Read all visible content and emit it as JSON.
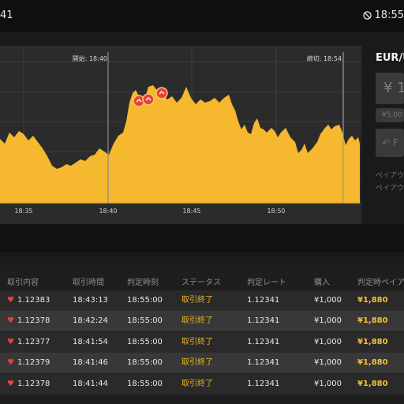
{
  "status_bar": {
    "time_left": "41",
    "time_right": "18:55"
  },
  "chart": {
    "start_label": "開始: 18:40",
    "end_label": "締切: 18:54",
    "x_ticks": [
      "18:35",
      "18:40",
      "18:45",
      "18:50"
    ]
  },
  "side_panel": {
    "pair": "EUR/U",
    "amount": "¥ 1",
    "amount_sub": "¥5,00",
    "bet_button": "↶ F",
    "payout_line1": "ペイアウ",
    "payout_line2": "ペイアウ"
  },
  "table": {
    "headers": [
      "取引内容",
      "取引時間",
      "判定時刻",
      "ステータス",
      "判定レート",
      "購入",
      "判定時ペイア"
    ],
    "rows": [
      {
        "rate": "1.12383",
        "time": "18:43:13",
        "judge_time": "18:55:00",
        "status": "取引終了",
        "judge_rate": "1.12341",
        "purchase": "¥1,000",
        "payout": "¥1,880"
      },
      {
        "rate": "1.12378",
        "time": "18:42:24",
        "judge_time": "18:55:00",
        "status": "取引終了",
        "judge_rate": "1.12341",
        "purchase": "¥1,000",
        "payout": "¥1,880"
      },
      {
        "rate": "1.12377",
        "time": "18:41:54",
        "judge_time": "18:55:00",
        "status": "取引終了",
        "judge_rate": "1.12341",
        "purchase": "¥1,000",
        "payout": "¥1,880"
      },
      {
        "rate": "1.12379",
        "time": "18:41:46",
        "judge_time": "18:55:00",
        "status": "取引終了",
        "judge_rate": "1.12341",
        "purchase": "¥1,000",
        "payout": "¥1,880"
      },
      {
        "rate": "1.12378",
        "time": "18:41:44",
        "judge_time": "18:55:00",
        "status": "取引終了",
        "judge_rate": "1.12341",
        "purchase": "¥1,000",
        "payout": "¥1,880"
      }
    ]
  },
  "colors": {
    "accent": "#f5b82e",
    "status_text": "#e8b420",
    "up_marker": "#e7423a"
  }
}
